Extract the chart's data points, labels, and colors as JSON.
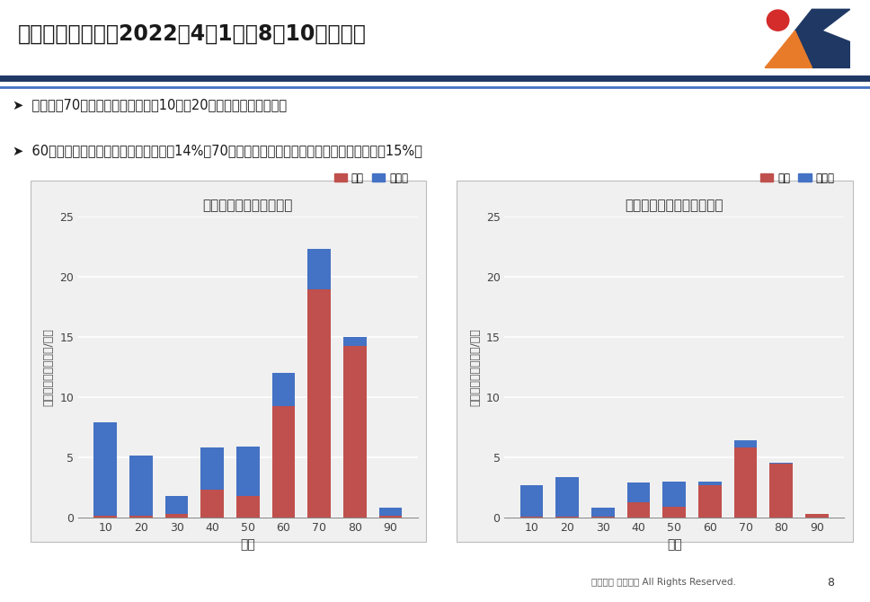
{
  "title": "年代別利用状況（2022年4月1日〜8月10日累計）",
  "bullet1": "平日は、70代以上の利用が多く、10代と20代の利用も見られる。",
  "bullet2": "60歳以上のアプリ利用者割合は平日で14%。70歳代だけで見るとアプリ利用者割合は平日で15%。",
  "chart1_title": "日平均利用回数（平日）",
  "chart2_title": "日平均利用回数（土日祝）",
  "xlabel": "年齢",
  "ylabel": "日平均利用回数（回/日）",
  "legend_phone": "電話",
  "legend_app": "アプリ",
  "categories": [
    10,
    20,
    30,
    40,
    50,
    60,
    70,
    80,
    90
  ],
  "chart1_phone": [
    0.2,
    0.2,
    0.3,
    2.3,
    1.8,
    9.3,
    19.0,
    14.3,
    0.2
  ],
  "chart1_app": [
    7.7,
    5.0,
    1.5,
    3.5,
    4.1,
    2.7,
    3.3,
    0.7,
    0.6
  ],
  "chart2_phone": [
    0.1,
    0.1,
    0.1,
    1.3,
    0.9,
    2.7,
    5.8,
    4.5,
    0.3
  ],
  "chart2_app": [
    2.6,
    3.3,
    0.7,
    1.6,
    2.1,
    0.3,
    0.6,
    0.1,
    0.0
  ],
  "ylim": [
    0,
    25
  ],
  "yticks": [
    0,
    5,
    10,
    15,
    20,
    25
  ],
  "color_phone": "#C0504D",
  "color_app": "#4472C4",
  "bg_color": "#FFFFFF",
  "chart_bg": "#F0F0F0",
  "title_bar_color1": "#1F3864",
  "title_bar_color2": "#4472C4",
  "footer_text": "茨城交通 株式会社 All Rights Reserved.",
  "page_num": "8"
}
